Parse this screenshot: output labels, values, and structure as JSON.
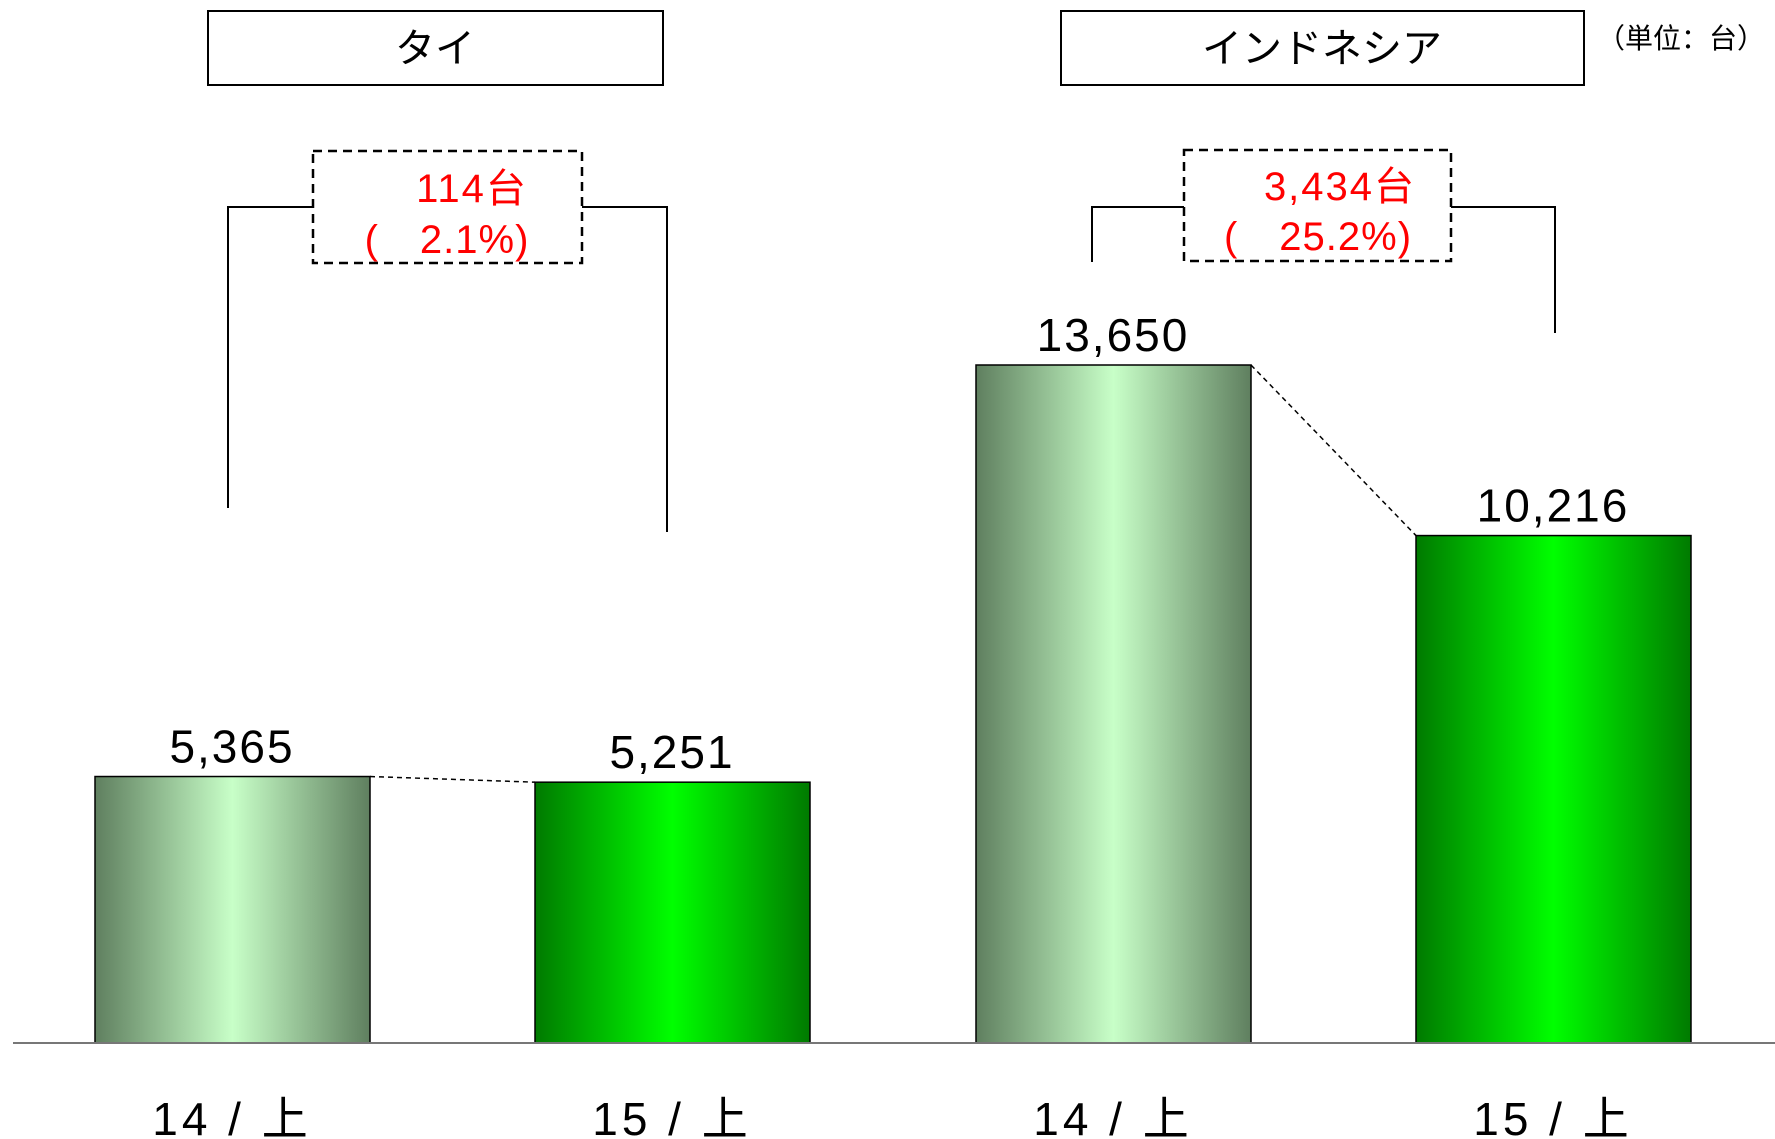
{
  "unit_note": "（単位：台）",
  "chart_data": {
    "type": "bar",
    "unit": "台",
    "groups": [
      {
        "name": "タイ",
        "categories": [
          "14 / 上",
          "15 / 上"
        ],
        "values": [
          5365,
          5251
        ],
        "value_labels": [
          "5,365",
          "5,251"
        ],
        "diff_label": "114台",
        "diff_pct_label": "(　2.1%)"
      },
      {
        "name": "インドネシア",
        "categories": [
          "14 / 上",
          "15 / 上"
        ],
        "values": [
          13650,
          10216
        ],
        "value_labels": [
          "13,650",
          "10,216"
        ],
        "diff_label": "3,434台",
        "diff_pct_label": "(　25.2%)"
      }
    ],
    "colors": {
      "bar_prior": "#c8f5c8",
      "bar_current": "#00ee00",
      "diff_text": "#ff0000"
    }
  }
}
